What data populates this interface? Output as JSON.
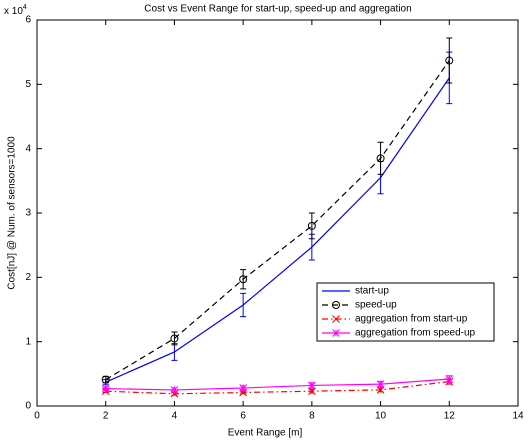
{
  "chart_data": {
    "type": "line",
    "title": "Cost vs Event Range for start-up, speed-up and aggregation",
    "xlabel": "Event Range [m]",
    "ylabel": "Cost[nJ] @ Num. of sensors=1000",
    "y_multiplier": {
      "base": "x 10",
      "exponent": "4"
    },
    "x": [
      2,
      4,
      6,
      8,
      10,
      12
    ],
    "xlim": [
      0,
      14
    ],
    "xticks": [
      0,
      2,
      4,
      6,
      8,
      10,
      12,
      14
    ],
    "ylim": [
      0,
      6
    ],
    "yticks": [
      0,
      1,
      2,
      3,
      4,
      5,
      6
    ],
    "grid": false,
    "legend": "lower right",
    "series": [
      {
        "name": "start-up",
        "color": "#0000ff",
        "linestyle": "solid",
        "marker": "none",
        "values": [
          0.37,
          0.84,
          1.57,
          2.47,
          3.55,
          5.1
        ],
        "errors": [
          0.04,
          0.13,
          0.18,
          0.2,
          0.25,
          0.4
        ]
      },
      {
        "name": "speed-up",
        "color": "#000000",
        "linestyle": "dashed",
        "marker": "circle",
        "values": [
          0.41,
          1.05,
          1.97,
          2.8,
          3.85,
          5.37
        ],
        "errors": [
          0.05,
          0.1,
          0.15,
          0.2,
          0.25,
          0.35
        ]
      },
      {
        "name": "aggregation from start-up",
        "color": "#ff0000",
        "linestyle": "dashdot",
        "marker": "x",
        "values": [
          0.23,
          0.19,
          0.21,
          0.23,
          0.25,
          0.38
        ],
        "errors": [
          0.02,
          0.02,
          0.02,
          0.03,
          0.03,
          0.04
        ]
      },
      {
        "name": "aggregation from speed-up",
        "color": "#ff00ff",
        "linestyle": "solid",
        "marker": "star",
        "values": [
          0.27,
          0.25,
          0.28,
          0.32,
          0.34,
          0.42
        ],
        "errors": [
          0.03,
          0.03,
          0.03,
          0.04,
          0.04,
          0.05
        ]
      }
    ]
  }
}
